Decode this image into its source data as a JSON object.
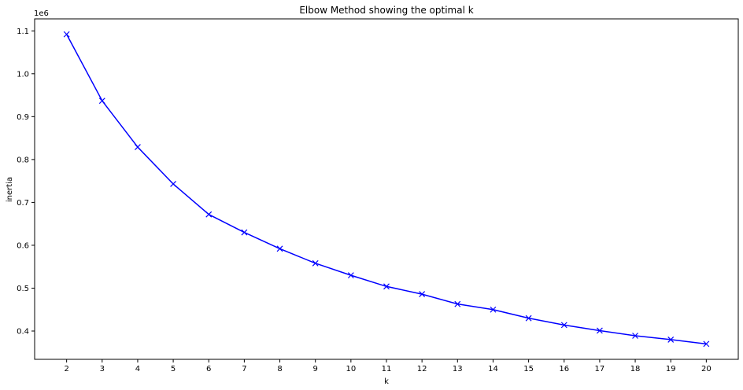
{
  "chart_data": {
    "type": "line",
    "title": "Elbow Method showing the optimal k",
    "xlabel": "k",
    "ylabel": "inertia",
    "y_offset_label": "1e6",
    "x": [
      2,
      3,
      4,
      5,
      6,
      7,
      8,
      9,
      10,
      11,
      12,
      13,
      14,
      15,
      16,
      17,
      18,
      19,
      20
    ],
    "series": [
      {
        "values": [
          1.092,
          0.937,
          0.829,
          0.743,
          0.672,
          0.63,
          0.592,
          0.558,
          0.53,
          0.504,
          0.486,
          0.463,
          0.45,
          0.43,
          0.414,
          0.401,
          0.389,
          0.38,
          0.37
        ],
        "color": "#0000ff",
        "marker": "x"
      }
    ],
    "xticks": [
      "2",
      "3",
      "4",
      "5",
      "6",
      "7",
      "8",
      "9",
      "10",
      "11",
      "12",
      "13",
      "14",
      "15",
      "16",
      "17",
      "18",
      "19",
      "20"
    ],
    "yticks": [
      "0.4",
      "0.5",
      "0.6",
      "0.7",
      "0.8",
      "0.9",
      "1.0",
      "1.1"
    ],
    "xlim": [
      1.1,
      20.9
    ],
    "ylim": [
      0.334,
      1.128
    ],
    "grid": false,
    "legend": null
  }
}
